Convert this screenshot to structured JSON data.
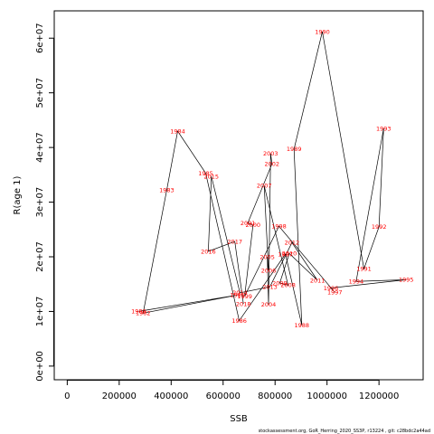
{
  "chart_data": {
    "type": "scatter",
    "title": "",
    "xlabel": "SSB",
    "ylabel": "R(age 1)",
    "xlim": [
      -50000,
      1370000
    ],
    "ylim": [
      -2500000,
      65000000
    ],
    "xticks": [
      {
        "value": 0,
        "label": "0"
      },
      {
        "value": 200000,
        "label": "200000"
      },
      {
        "value": 400000,
        "label": "400000"
      },
      {
        "value": 600000,
        "label": "600000"
      },
      {
        "value": 800000,
        "label": "800000"
      },
      {
        "value": 1000000,
        "label": "1000000"
      },
      {
        "value": 1200000,
        "label": "1200000"
      }
    ],
    "yticks": [
      {
        "value": 0,
        "label": "0e+00"
      },
      {
        "value": 10000000,
        "label": "1e+07"
      },
      {
        "value": 20000000,
        "label": "2e+07"
      },
      {
        "value": 30000000,
        "label": "3e+07"
      },
      {
        "value": 40000000,
        "label": "4e+07"
      },
      {
        "value": 50000000,
        "label": "5e+07"
      },
      {
        "value": 60000000,
        "label": "6e+07"
      }
    ],
    "grid": false,
    "legend": "none",
    "connected": true,
    "point_color": "#ff0000",
    "line_color": "#000000",
    "points": [
      {
        "year": "1980",
        "ssb": 275000,
        "rec": 10000000
      },
      {
        "year": "1981",
        "ssb": 655000,
        "rec": 13000000
      },
      {
        "year": "1982",
        "ssb": 292000,
        "rec": 9700000
      },
      {
        "year": "1983",
        "ssb": 383000,
        "rec": 32200000
      },
      {
        "year": "1984",
        "ssb": 425000,
        "rec": 43000000
      },
      {
        "year": "1985",
        "ssb": 533000,
        "rec": 35300000
      },
      {
        "year": "1986",
        "ssb": 662000,
        "rec": 8300000
      },
      {
        "year": "1987",
        "ssb": 840000,
        "rec": 20500000
      },
      {
        "year": "1988",
        "ssb": 903000,
        "rec": 7500000
      },
      {
        "year": "1989",
        "ssb": 873000,
        "rec": 39700000
      },
      {
        "year": "1990",
        "ssb": 982000,
        "rec": 61200000
      },
      {
        "year": "1991",
        "ssb": 1142000,
        "rec": 17800000
      },
      {
        "year": "1992",
        "ssb": 1200000,
        "rec": 25500000
      },
      {
        "year": "1993",
        "ssb": 1218000,
        "rec": 43500000
      },
      {
        "year": "1994",
        "ssb": 1112000,
        "rec": 15500000
      },
      {
        "year": "1995",
        "ssb": 1305000,
        "rec": 15800000
      },
      {
        "year": "1996",
        "ssb": 1015000,
        "rec": 14300000
      },
      {
        "year": "1997",
        "ssb": 1030000,
        "rec": 13500000
      },
      {
        "year": "1998",
        "ssb": 815000,
        "rec": 25600000
      },
      {
        "year": "1999",
        "ssb": 683000,
        "rec": 12800000
      },
      {
        "year": "2000",
        "ssb": 715000,
        "rec": 25800000
      },
      {
        "year": "2001",
        "ssb": 695000,
        "rec": 26200000
      },
      {
        "year": "2002",
        "ssb": 788000,
        "rec": 37000000
      },
      {
        "year": "2003",
        "ssb": 783000,
        "rec": 38900000
      },
      {
        "year": "2004",
        "ssb": 775000,
        "rec": 11300000
      },
      {
        "year": "2005",
        "ssb": 770000,
        "rec": 20000000
      },
      {
        "year": "2006",
        "ssb": 775000,
        "rec": 17500000
      },
      {
        "year": "2007",
        "ssb": 758000,
        "rec": 33000000
      },
      {
        "year": "2008",
        "ssb": 850000,
        "rec": 14800000
      },
      {
        "year": "2009",
        "ssb": 818000,
        "rec": 15200000
      },
      {
        "year": "2010",
        "ssb": 855000,
        "rec": 20600000
      },
      {
        "year": "2011",
        "ssb": 963000,
        "rec": 15700000
      },
      {
        "year": "2012",
        "ssb": 865000,
        "rec": 22600000
      },
      {
        "year": "2013",
        "ssb": 780000,
        "rec": 14500000
      },
      {
        "year": "2014",
        "ssb": 665000,
        "rec": 13400000
      },
      {
        "year": "2015",
        "ssb": 555000,
        "rec": 34700000
      },
      {
        "year": "2016",
        "ssb": 543000,
        "rec": 21000000
      },
      {
        "year": "2017",
        "ssb": 645000,
        "rec": 22800000
      },
      {
        "year": "2018",
        "ssb": 678000,
        "rec": 11400000
      }
    ],
    "annotation": "stockassessment.org,  GoR_Herring_2020_SS3P,  r13224 ,  git: c28bdc2a44ad"
  }
}
